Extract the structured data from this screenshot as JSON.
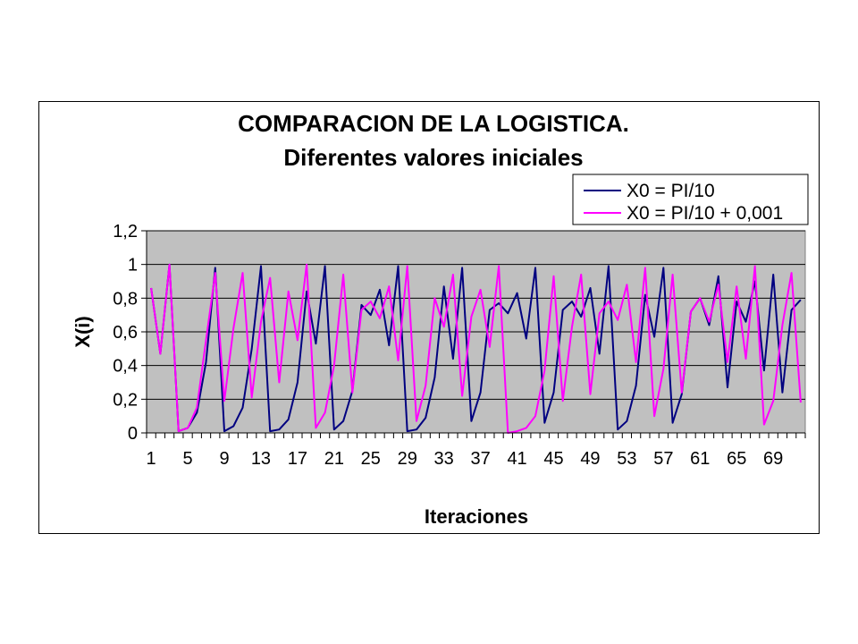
{
  "chart_data": {
    "type": "line",
    "title": "COMPARACION DE LA LOGISTICA.",
    "subtitle": "Diferentes valores iniciales",
    "xlabel": "Iteraciones",
    "ylabel": "X(i)",
    "ylim": [
      0,
      1.2
    ],
    "yticks": [
      "0",
      "0,2",
      "0,4",
      "0,6",
      "0,8",
      "1",
      "1,2"
    ],
    "xtick_labels": [
      "1",
      "5",
      "9",
      "13",
      "17",
      "21",
      "25",
      "29",
      "33",
      "37",
      "41",
      "45",
      "49",
      "53",
      "57",
      "61",
      "65",
      "69"
    ],
    "grid": true,
    "legend_position": "top-right",
    "plot_background": "#c0c0c0",
    "x": [
      1,
      2,
      3,
      4,
      5,
      6,
      7,
      8,
      9,
      10,
      11,
      12,
      13,
      14,
      15,
      16,
      17,
      18,
      19,
      20,
      21,
      22,
      23,
      24,
      25,
      26,
      27,
      28,
      29,
      30,
      31,
      32,
      33,
      34,
      35,
      36,
      37,
      38,
      39,
      40,
      41,
      42,
      43,
      44,
      45,
      46,
      47,
      48,
      49,
      50,
      51,
      52,
      53,
      54,
      55,
      56,
      57,
      58,
      59,
      60,
      61,
      62,
      63,
      64,
      65,
      66,
      67,
      68,
      69,
      70,
      71,
      72
    ],
    "series": [
      {
        "name": "X0 = PI/10",
        "color": "#000080",
        "values": [
          0.86,
          0.47,
          1.0,
          0.01,
          0.03,
          0.12,
          0.42,
          0.98,
          0.01,
          0.04,
          0.15,
          0.5,
          0.99,
          0.01,
          0.02,
          0.08,
          0.3,
          0.84,
          0.53,
          0.99,
          0.02,
          0.07,
          0.25,
          0.76,
          0.7,
          0.85,
          0.52,
          0.99,
          0.01,
          0.02,
          0.09,
          0.33,
          0.87,
          0.44,
          0.98,
          0.07,
          0.24,
          0.73,
          0.77,
          0.71,
          0.83,
          0.56,
          0.98,
          0.06,
          0.24,
          0.73,
          0.78,
          0.69,
          0.86,
          0.47,
          0.99,
          0.02,
          0.07,
          0.28,
          0.82,
          0.57,
          0.98,
          0.06,
          0.23,
          0.72,
          0.8,
          0.64,
          0.93,
          0.27,
          0.78,
          0.66,
          0.9,
          0.37,
          0.94,
          0.24,
          0.73,
          0.79
        ]
      },
      {
        "name": "X0 = PI/10 + 0,001",
        "color": "#ff00ff",
        "values": [
          0.86,
          0.47,
          1.0,
          0.01,
          0.03,
          0.15,
          0.55,
          0.95,
          0.19,
          0.62,
          0.95,
          0.21,
          0.66,
          0.92,
          0.3,
          0.84,
          0.55,
          1.0,
          0.03,
          0.12,
          0.4,
          0.94,
          0.24,
          0.73,
          0.78,
          0.68,
          0.87,
          0.43,
          0.99,
          0.07,
          0.28,
          0.8,
          0.63,
          0.94,
          0.22,
          0.69,
          0.85,
          0.51,
          0.99,
          0.0,
          0.01,
          0.03,
          0.1,
          0.37,
          0.93,
          0.19,
          0.63,
          0.94,
          0.23,
          0.71,
          0.78,
          0.67,
          0.88,
          0.42,
          0.98,
          0.1,
          0.38,
          0.94,
          0.24,
          0.72,
          0.8,
          0.66,
          0.88,
          0.42,
          0.87,
          0.44,
          0.99,
          0.05,
          0.19,
          0.64,
          0.95,
          0.18
        ]
      }
    ]
  }
}
